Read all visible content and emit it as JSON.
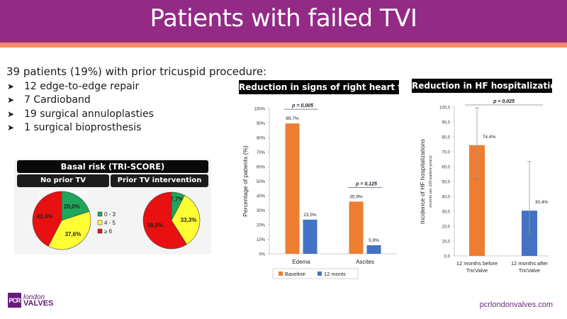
{
  "header": {
    "title": "Patients with failed TVI"
  },
  "intro": {
    "text": "39 patients (19%) with prior tricuspid procedure:"
  },
  "bullets": [
    "12 edge-to-edge repair",
    "7 Cardioband",
    "19 surgical annuloplasties",
    "1 surgical  bioprosthesis"
  ],
  "bullet_icon": "arrowhead-bullet-icon",
  "colors": {
    "header": "#932a86",
    "accent_stripe": "#f7896a",
    "orange": "#ed7d31",
    "blue": "#4472c4",
    "green": "#1fa65a",
    "yellow": "#ffff33",
    "red": "#e81010"
  },
  "chart_data": [
    {
      "type": "pie",
      "title": "Basal risk (TRI-SCORE)",
      "subtitle": "No prior TV intervention",
      "categories": [
        "0 - 3",
        "4 - 5",
        "≥ 6"
      ],
      "values": [
        20.0,
        37.6,
        42.4
      ],
      "labels": [
        "20,0%",
        "37,6%",
        "42,4%"
      ],
      "legend": {
        "entries": [
          "0 - 3",
          "4 - 5",
          "≥ 6"
        ],
        "placement": "center-between"
      }
    },
    {
      "type": "pie",
      "title": "Basal risk (TRI-SCORE)",
      "subtitle": "Prior TV intervention",
      "categories": [
        "0 - 3",
        "4 - 5",
        "≥ 6"
      ],
      "values": [
        7.7,
        33.3,
        59.0
      ],
      "labels": [
        "7,7%",
        "33,3%",
        "59,0%"
      ]
    },
    {
      "type": "bar",
      "title": "Reduction in signs of right heart failure",
      "categories": [
        "Edema",
        "Ascites"
      ],
      "series": [
        {
          "name": "Baseline",
          "values": [
            89.7,
            35.9
          ],
          "labels": [
            "89,7%",
            "35,9%"
          ]
        },
        {
          "name": "12 monts",
          "values": [
            23.5,
            5.9
          ],
          "labels": [
            "23,5%",
            "5,9%"
          ]
        }
      ],
      "ylabel": "Percentage of patients (%)",
      "ylim": [
        0,
        100
      ],
      "yticks": [
        "0%",
        "10%",
        "20%",
        "30%",
        "40%",
        "50%",
        "60%",
        "70%",
        "80%",
        "90%",
        "100%"
      ],
      "annotations": [
        "p = 0,005",
        "p = 0,125"
      ],
      "legend": {
        "entries": [
          "Baseline",
          "12 monts"
        ],
        "placement": "bottom"
      },
      "grid": false
    },
    {
      "type": "bar",
      "title": "Reduction in HF hospitalizations",
      "categories": [
        "12 months before TricValve",
        "12 months after TricValve"
      ],
      "category_lines": [
        [
          "12 months before",
          "TricValve"
        ],
        [
          "12 months after",
          "TricValve"
        ]
      ],
      "values": [
        74.4,
        30.4
      ],
      "labels": [
        "74,4%",
        "30,4%"
      ],
      "error_bars": [
        [
          51.5,
          99.5
        ],
        [
          14.5,
          63.5
        ]
      ],
      "ylabel": "Incidence of HF hospitalizations",
      "ylabel_sub": "(events per 100 patient-years)",
      "ylim": [
        0,
        100
      ],
      "yticks": [
        "0,0",
        "10,0",
        "20,0",
        "30,0",
        "40,0",
        "50,0",
        "60,0",
        "70,0",
        "80,0",
        "90,0",
        "100,0"
      ],
      "annotations": [
        "p = 0,025"
      ],
      "grid": false
    }
  ],
  "footer": {
    "logo_mark": "PCR",
    "logo_line1": "london",
    "logo_line2": "VALVES",
    "url": "pcrlondonvalves.com"
  }
}
